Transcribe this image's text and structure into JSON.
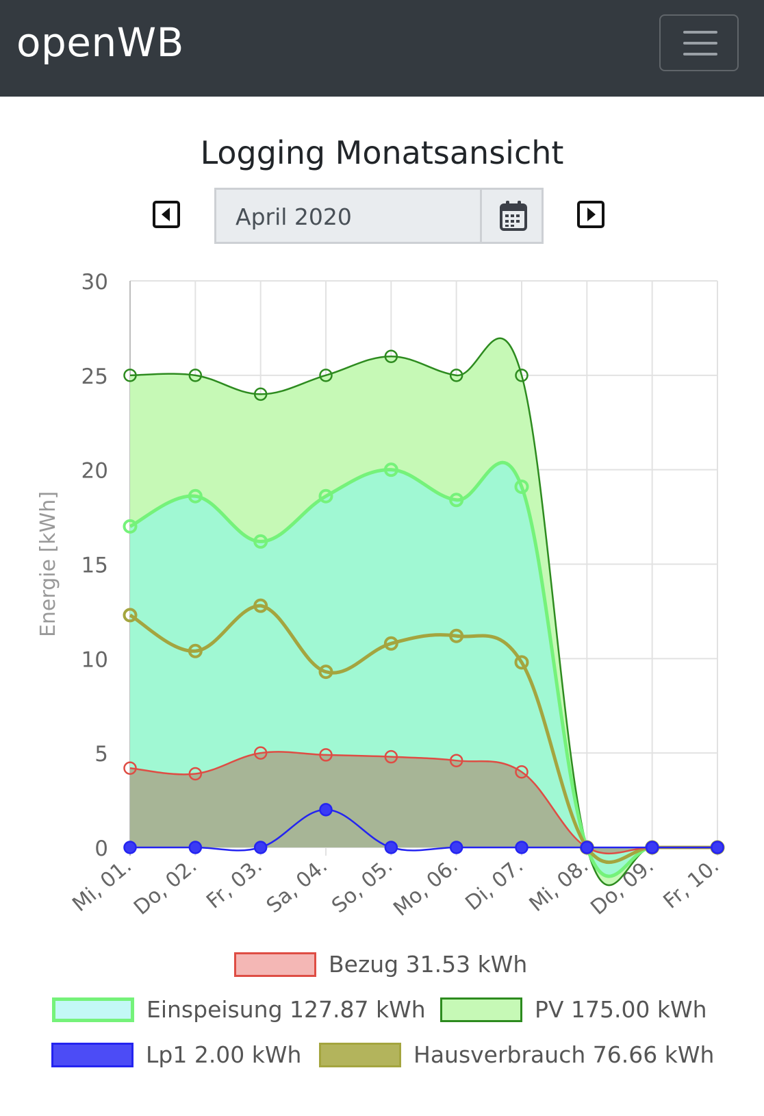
{
  "navbar": {
    "brand": "openWB"
  },
  "page": {
    "title": "Logging Monatsansicht"
  },
  "date_picker": {
    "value": "April 2020"
  },
  "icons": {
    "menu": "hamburger-icon",
    "prev": "caret-left-square-icon",
    "next": "caret-right-square-icon",
    "calendar": "calendar-icon"
  },
  "chart_data": {
    "type": "line",
    "ylabel": "Energie [kWh]",
    "ylim": [
      0,
      30
    ],
    "yticks": [
      0,
      5,
      10,
      15,
      20,
      25,
      30
    ],
    "grid": true,
    "legend_position": "bottom",
    "categories": [
      "Mi, 01.",
      "Do, 02.",
      "Fr, 03.",
      "Sa, 04.",
      "So, 05.",
      "Mo, 06.",
      "Di, 07.",
      "Mi, 08.",
      "Do, 09.",
      "Fr, 10."
    ],
    "series": [
      {
        "name": "PV",
        "legend": "PV 175.00 kWh",
        "values": [
          25,
          25,
          24,
          25,
          26,
          25,
          25,
          0,
          0,
          0
        ],
        "stroke": "#2d8b1f",
        "fill": "#c6f9b6"
      },
      {
        "name": "Einspeisung",
        "legend": "Einspeisung 127.87 kWh",
        "values": [
          17,
          18.6,
          16.2,
          18.6,
          20,
          18.4,
          19.1,
          0,
          0,
          0
        ],
        "stroke": "#75f27a",
        "fill": "#c3f8f6"
      },
      {
        "name": "Hausverbrauch",
        "legend": "Hausverbrauch 76.66 kWh",
        "values": [
          12.3,
          10.4,
          12.8,
          9.3,
          10.8,
          11.2,
          9.8,
          0,
          0,
          0
        ],
        "stroke": "#a4a53f",
        "fill": "#b3b45c"
      },
      {
        "name": "Bezug",
        "legend": "Bezug 31.53 kWh",
        "values": [
          4.2,
          3.9,
          5.0,
          4.9,
          4.8,
          4.6,
          4.0,
          0,
          0,
          0
        ],
        "stroke": "#de4d44",
        "fill": "#f4b7b5"
      },
      {
        "name": "Lp1",
        "legend": "Lp1 2.00 kWh",
        "values": [
          0,
          0,
          0,
          2,
          0,
          0,
          0,
          0,
          0,
          0
        ],
        "stroke": "#2424f0",
        "fill": "#4c4cf6"
      }
    ],
    "area_fills": {
      "einspeisung_overlay": "#a0f8d3",
      "bezug_overlay": "#a7b596"
    }
  }
}
